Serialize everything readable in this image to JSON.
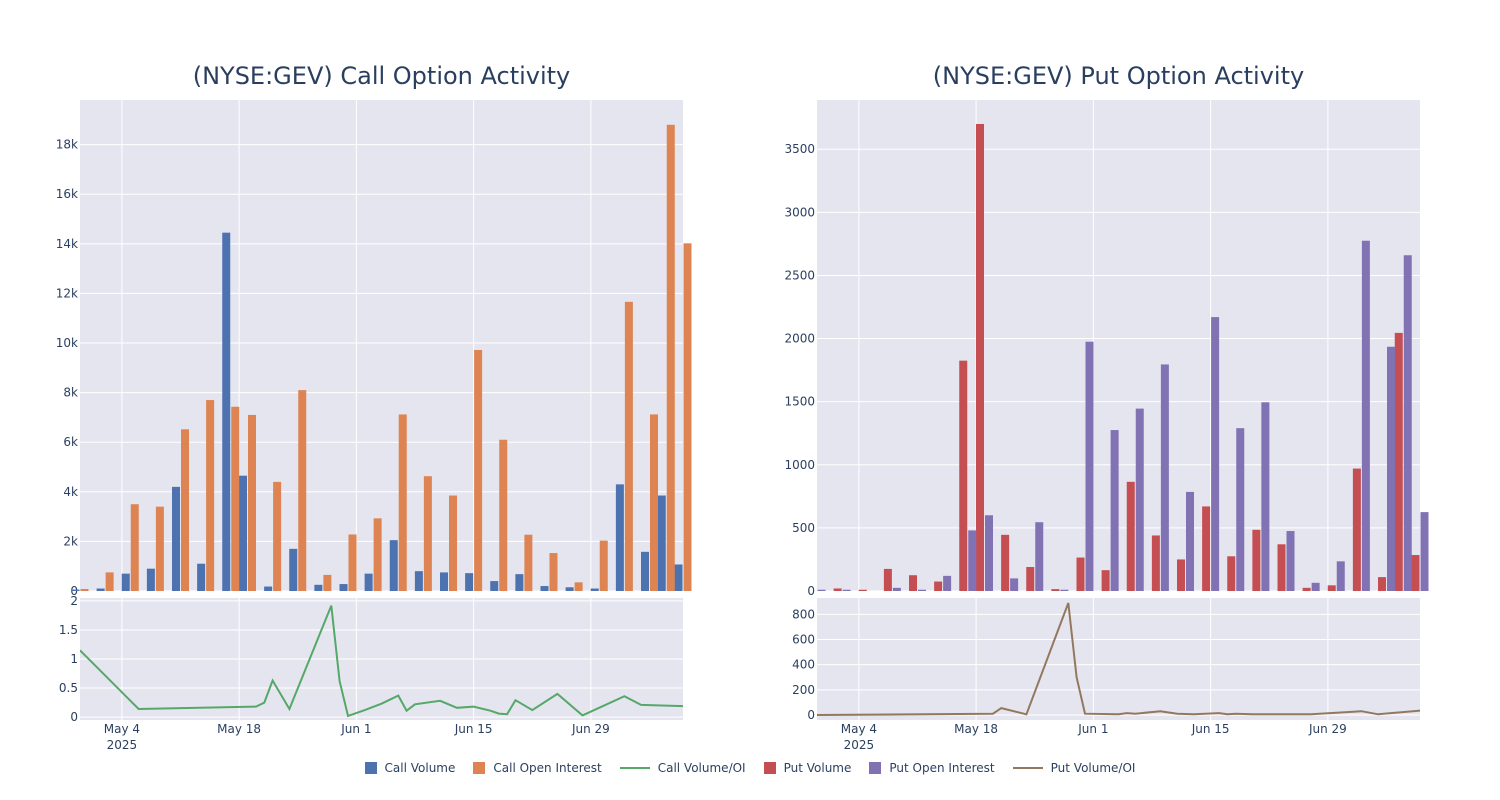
{
  "chart_data": [
    {
      "type": "bar",
      "title": "(NYSE:GEV) Call Option Activity",
      "xlabel": "",
      "ylabel": "",
      "ylim": [
        0,
        19800
      ],
      "yticks": [
        0,
        2000,
        4000,
        6000,
        8000,
        10000,
        12000,
        14000,
        16000,
        18000
      ],
      "ytick_labels": [
        "0",
        "2k",
        "4k",
        "6k",
        "8k",
        "10k",
        "12k",
        "14k",
        "16k",
        "18k"
      ],
      "x_range": [
        "2025-04-29",
        "2025-07-10"
      ],
      "x_ticks": [
        "2025-05-04",
        "2025-05-18",
        "2025-06-01",
        "2025-06-15",
        "2025-06-29"
      ],
      "x_tick_labels": [
        "May 4",
        "May 18",
        "Jun 1",
        "Jun 15",
        "Jun 29"
      ],
      "x_year_label": "2025",
      "categories": [
        "2025-04-29",
        "2025-05-02",
        "2025-05-05",
        "2025-05-08",
        "2025-05-11",
        "2025-05-14",
        "2025-05-17",
        "2025-05-19",
        "2025-05-22",
        "2025-05-25",
        "2025-05-28",
        "2025-05-31",
        "2025-06-03",
        "2025-06-06",
        "2025-06-09",
        "2025-06-12",
        "2025-06-15",
        "2025-06-18",
        "2025-06-21",
        "2025-06-24",
        "2025-06-27",
        "2025-06-30",
        "2025-07-03",
        "2025-07-06",
        "2025-07-08",
        "2025-07-10"
      ],
      "series": [
        {
          "name": "Call Volume",
          "values": [
            60,
            100,
            700,
            900,
            4200,
            1100,
            14450,
            4650,
            180,
            1700,
            250,
            280,
            700,
            2050,
            800,
            750,
            720,
            400,
            680,
            200,
            150,
            100,
            4300,
            1580,
            3850,
            1070
          ]
        },
        {
          "name": "Call Open Interest",
          "values": [
            80,
            750,
            3500,
            3400,
            6520,
            7700,
            7430,
            7100,
            4400,
            8100,
            650,
            2280,
            2930,
            7120,
            4630,
            3850,
            9720,
            6100,
            2270,
            1530,
            350,
            2030,
            11660,
            7120,
            18800,
            14020
          ]
        }
      ],
      "ratio": {
        "name": "Call Volume/OI",
        "ylim": [
          -0.05,
          2.05
        ],
        "yticks": [
          0,
          0.5,
          1,
          1.5,
          2
        ],
        "ytick_labels": [
          "0",
          "0.5",
          "1",
          "1.5",
          "2"
        ],
        "points": [
          [
            "2025-04-29",
            1.15
          ],
          [
            "2025-05-06",
            0.14
          ],
          [
            "2025-05-20",
            0.18
          ],
          [
            "2025-05-21",
            0.25
          ],
          [
            "2025-05-22",
            0.63
          ],
          [
            "2025-05-24",
            0.14
          ],
          [
            "2025-05-29",
            1.92
          ],
          [
            "2025-05-30",
            0.62
          ],
          [
            "2025-05-31",
            0.02
          ],
          [
            "2025-06-02",
            0.12
          ],
          [
            "2025-06-04",
            0.23
          ],
          [
            "2025-06-06",
            0.37
          ],
          [
            "2025-06-07",
            0.11
          ],
          [
            "2025-06-08",
            0.22
          ],
          [
            "2025-06-11",
            0.28
          ],
          [
            "2025-06-13",
            0.16
          ],
          [
            "2025-06-15",
            0.18
          ],
          [
            "2025-06-17",
            0.11
          ],
          [
            "2025-06-18",
            0.06
          ],
          [
            "2025-06-19",
            0.05
          ],
          [
            "2025-06-20",
            0.29
          ],
          [
            "2025-06-22",
            0.12
          ],
          [
            "2025-06-25",
            0.4
          ],
          [
            "2025-06-28",
            0.03
          ],
          [
            "2025-07-03",
            0.36
          ],
          [
            "2025-07-05",
            0.21
          ],
          [
            "2025-07-10",
            0.19
          ],
          [
            "2025-07-12",
            0.06
          ],
          [
            "2025-07-13",
            0.23
          ]
        ]
      }
    },
    {
      "type": "bar",
      "title": "(NYSE:GEV) Put Option Activity",
      "xlabel": "",
      "ylabel": "",
      "ylim": [
        0,
        3890
      ],
      "yticks": [
        0,
        500,
        1000,
        1500,
        2000,
        2500,
        3000,
        3500
      ],
      "ytick_labels": [
        "0",
        "500",
        "1000",
        "1500",
        "2000",
        "2500",
        "3000",
        "3500"
      ],
      "x_range": [
        "2025-04-29",
        "2025-07-10"
      ],
      "x_ticks": [
        "2025-05-04",
        "2025-05-18",
        "2025-06-01",
        "2025-06-15",
        "2025-06-29"
      ],
      "x_tick_labels": [
        "May 4",
        "May 18",
        "Jun 1",
        "Jun 15",
        "Jun 29"
      ],
      "x_year_label": "2025",
      "categories": [
        "2025-04-29",
        "2025-05-02",
        "2025-05-05",
        "2025-05-08",
        "2025-05-11",
        "2025-05-14",
        "2025-05-17",
        "2025-05-19",
        "2025-05-22",
        "2025-05-25",
        "2025-05-28",
        "2025-05-31",
        "2025-06-03",
        "2025-06-06",
        "2025-06-09",
        "2025-06-12",
        "2025-06-15",
        "2025-06-18",
        "2025-06-21",
        "2025-06-24",
        "2025-06-27",
        "2025-06-30",
        "2025-07-03",
        "2025-07-06",
        "2025-07-08",
        "2025-07-10"
      ],
      "series": [
        {
          "name": "Put Volume",
          "values": [
            0,
            20,
            10,
            175,
            125,
            75,
            1825,
            3700,
            445,
            190,
            15,
            265,
            165,
            865,
            440,
            250,
            670,
            275,
            485,
            370,
            25,
            45,
            970,
            110,
            2045,
            285
          ]
        },
        {
          "name": "Put Open Interest",
          "values": [
            10,
            10,
            0,
            25,
            10,
            120,
            480,
            600,
            100,
            545,
            10,
            1975,
            1275,
            1445,
            1795,
            785,
            2170,
            1290,
            1495,
            475,
            65,
            235,
            2775,
            1935,
            2660,
            625
          ]
        }
      ],
      "ratio": {
        "name": "Put Volume/OI",
        "ylim": [
          -40,
          930
        ],
        "yticks": [
          0,
          200,
          400,
          600,
          800
        ],
        "ytick_labels": [
          "0",
          "200",
          "400",
          "600",
          "800"
        ],
        "points": [
          [
            "2025-04-29",
            0
          ],
          [
            "2025-05-20",
            10
          ],
          [
            "2025-05-21",
            55
          ],
          [
            "2025-05-24",
            5
          ],
          [
            "2025-05-29",
            890
          ],
          [
            "2025-05-30",
            300
          ],
          [
            "2025-05-31",
            10
          ],
          [
            "2025-06-04",
            5
          ],
          [
            "2025-06-05",
            15
          ],
          [
            "2025-06-06",
            10
          ],
          [
            "2025-06-09",
            30
          ],
          [
            "2025-06-11",
            10
          ],
          [
            "2025-06-13",
            5
          ],
          [
            "2025-06-16",
            15
          ],
          [
            "2025-06-17",
            5
          ],
          [
            "2025-06-18",
            10
          ],
          [
            "2025-06-20",
            5
          ],
          [
            "2025-06-27",
            5
          ],
          [
            "2025-07-03",
            30
          ],
          [
            "2025-07-05",
            5
          ],
          [
            "2025-07-10",
            35
          ],
          [
            "2025-07-13",
            5
          ]
        ]
      }
    }
  ],
  "legend": [
    {
      "label": "Call Volume",
      "kind": "box",
      "color": "#4c72b0"
    },
    {
      "label": "Call Open Interest",
      "kind": "box",
      "color": "#dd8452"
    },
    {
      "label": "Call Volume/OI",
      "kind": "line",
      "color": "#55a868"
    },
    {
      "label": "Put Volume",
      "kind": "box",
      "color": "#c44e52"
    },
    {
      "label": "Put Open Interest",
      "kind": "box",
      "color": "#8172b3"
    },
    {
      "label": "Put Volume/OI",
      "kind": "line",
      "color": "#937860"
    }
  ],
  "colors": {
    "plot_bg": "#e5e5ef",
    "grid": "#ffffff",
    "bar_colors": [
      [
        "#4c72b0",
        "#dd8452"
      ],
      [
        "#c44e52",
        "#8172b3"
      ]
    ],
    "line_colors": [
      "#55a868",
      "#937860"
    ]
  }
}
